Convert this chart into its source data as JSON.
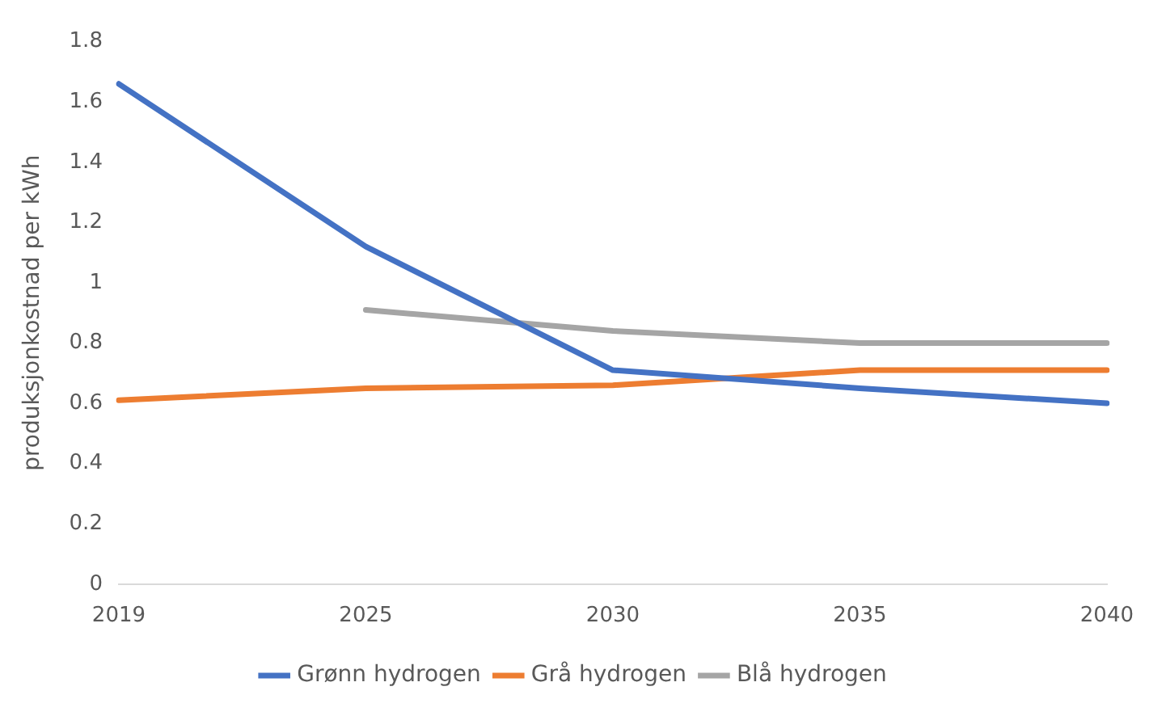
{
  "chart_data": {
    "type": "line",
    "ylabel": "produksjonkostnad per kWh",
    "categories": [
      "2019",
      "2025",
      "2030",
      "2035",
      "2040"
    ],
    "series": [
      {
        "name": "Grønn hydrogen",
        "color": "#4472c4",
        "values": [
          1.66,
          1.12,
          0.71,
          0.65,
          0.6
        ]
      },
      {
        "name": "Grå hydrogen",
        "color": "#ed7d31",
        "values": [
          0.61,
          0.65,
          0.66,
          0.71,
          0.71
        ]
      },
      {
        "name": "Blå hydrogen",
        "color": "#a5a5a5",
        "values": [
          null,
          0.91,
          0.84,
          0.8,
          0.8
        ]
      }
    ],
    "ylim": [
      0,
      1.8
    ],
    "yticks": [
      0,
      0.2,
      0.4,
      0.6,
      0.8,
      1,
      1.2,
      1.4,
      1.6,
      1.8
    ],
    "grid": false,
    "legend": "bottom",
    "marker": "none",
    "line_style": "solid"
  }
}
